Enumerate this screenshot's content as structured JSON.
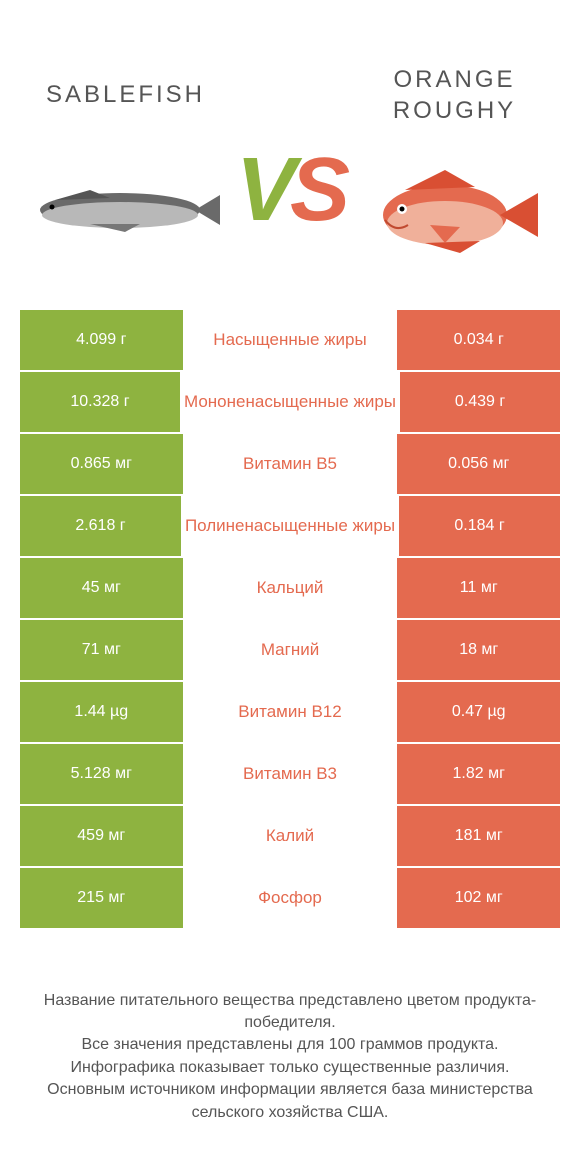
{
  "colors": {
    "left_bg": "#8eb340",
    "right_bg": "#e46a4f",
    "left_text": "#e46a4f",
    "right_text": "#8eb340",
    "white": "#ffffff"
  },
  "header": {
    "left_title": "Sablefish",
    "right_title": "ORANGE ROUGHY",
    "vs_v": "V",
    "vs_s": "S"
  },
  "rows": [
    {
      "left": "4.099 г",
      "mid": "Насыщенные жиры",
      "right": "0.034 г",
      "winner": "left"
    },
    {
      "left": "10.328 г",
      "mid": "Мононенасыщенные жиры",
      "right": "0.439 г",
      "winner": "left"
    },
    {
      "left": "0.865 мг",
      "mid": "Витамин B5",
      "right": "0.056 мг",
      "winner": "left"
    },
    {
      "left": "2.618 г",
      "mid": "Полиненасыщенные жиры",
      "right": "0.184 г",
      "winner": "left"
    },
    {
      "left": "45 мг",
      "mid": "Кальций",
      "right": "11 мг",
      "winner": "left"
    },
    {
      "left": "71 мг",
      "mid": "Магний",
      "right": "18 мг",
      "winner": "left"
    },
    {
      "left": "1.44 µg",
      "mid": "Витамин B12",
      "right": "0.47 µg",
      "winner": "left"
    },
    {
      "left": "5.128 мг",
      "mid": "Витамин B3",
      "right": "1.82 мг",
      "winner": "left"
    },
    {
      "left": "459 мг",
      "mid": "Калий",
      "right": "181 мг",
      "winner": "left"
    },
    {
      "left": "215 мг",
      "mid": "Фосфор",
      "right": "102 мг",
      "winner": "left"
    }
  ],
  "footer": {
    "line1": "Название питательного вещества представлено цветом продукта-победителя.",
    "line2": "Все значения представлены для 100 граммов продукта.",
    "line3": "Инфографика показывает только существенные различия.",
    "line4": "Основным источником информации является база министерства сельского хозяйства США."
  }
}
